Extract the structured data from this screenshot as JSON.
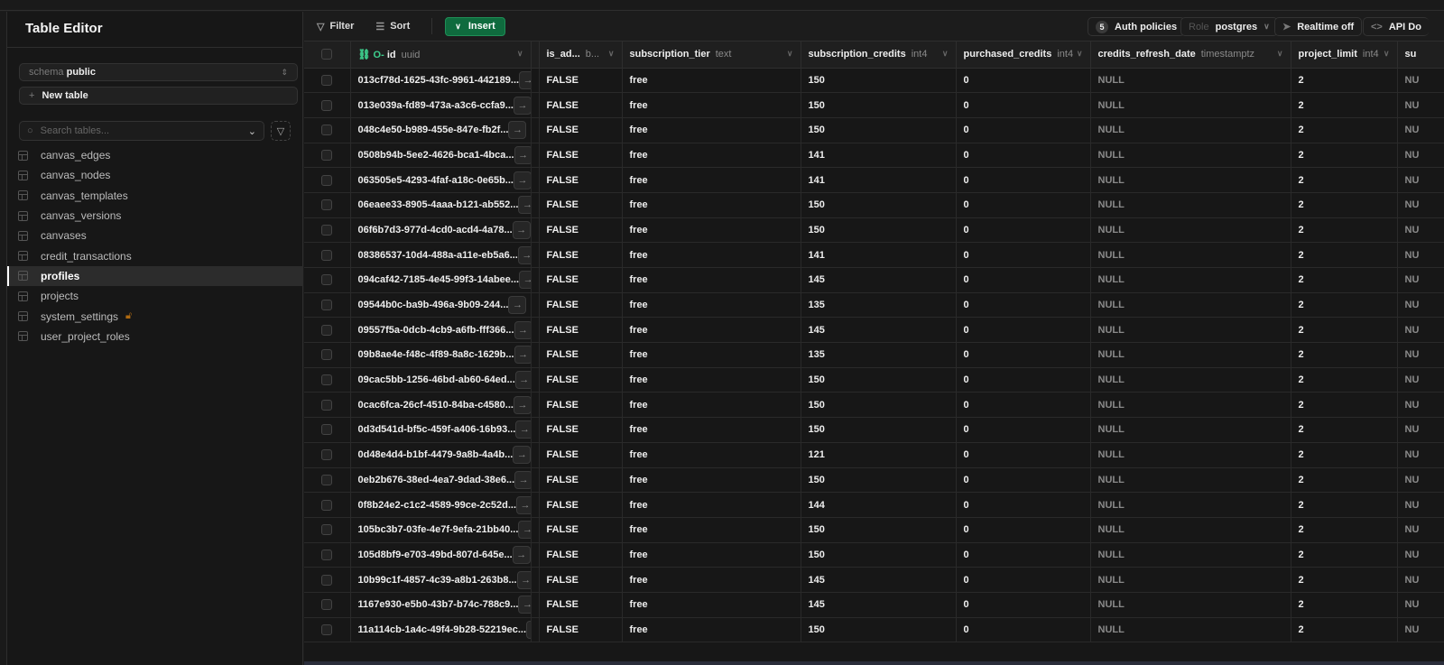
{
  "sidebar": {
    "title": "Table Editor",
    "schema_label": "schema",
    "schema_value": "public",
    "new_table": "New table",
    "search_placeholder": "Search tables...",
    "tables": [
      {
        "name": "canvas_edges"
      },
      {
        "name": "canvas_nodes"
      },
      {
        "name": "canvas_templates"
      },
      {
        "name": "canvas_versions"
      },
      {
        "name": "canvases"
      },
      {
        "name": "credit_transactions"
      },
      {
        "name": "profiles",
        "active": true
      },
      {
        "name": "projects"
      },
      {
        "name": "system_settings",
        "locked": true
      },
      {
        "name": "user_project_roles"
      }
    ]
  },
  "toolbar": {
    "filter": "Filter",
    "sort": "Sort",
    "insert": "Insert",
    "auth_count": "5",
    "auth_policies": "Auth policies",
    "role_label": "Role",
    "role_value": "postgres",
    "realtime": "Realtime off",
    "api_docs": "API Do"
  },
  "accent": "#0f6b3e",
  "columns": [
    {
      "name": "id",
      "type": "uuid"
    },
    {
      "name": "is_ad...",
      "type": "b..."
    },
    {
      "name": "subscription_tier",
      "type": "text"
    },
    {
      "name": "subscription_credits",
      "type": "int4"
    },
    {
      "name": "purchased_credits",
      "type": "int4"
    },
    {
      "name": "credits_refresh_date",
      "type": "timestamptz"
    },
    {
      "name": "project_limit",
      "type": "int4"
    },
    {
      "name": "su",
      "type": ""
    }
  ],
  "rows": [
    [
      "013cf78d-1625-43fc-9961-442189...",
      "FALSE",
      "free",
      "150",
      "0",
      "NULL",
      "2",
      "NU"
    ],
    [
      "013e039a-fd89-473a-a3c6-ccfa9...",
      "FALSE",
      "free",
      "150",
      "0",
      "NULL",
      "2",
      "NU"
    ],
    [
      "048c4e50-b989-455e-847e-fb2f...",
      "FALSE",
      "free",
      "150",
      "0",
      "NULL",
      "2",
      "NU"
    ],
    [
      "0508b94b-5ee2-4626-bca1-4bca...",
      "FALSE",
      "free",
      "141",
      "0",
      "NULL",
      "2",
      "NU"
    ],
    [
      "063505e5-4293-4faf-a18c-0e65b...",
      "FALSE",
      "free",
      "141",
      "0",
      "NULL",
      "2",
      "NU"
    ],
    [
      "06eaee33-8905-4aaa-b121-ab552...",
      "FALSE",
      "free",
      "150",
      "0",
      "NULL",
      "2",
      "NU"
    ],
    [
      "06f6b7d3-977d-4cd0-acd4-4a78...",
      "FALSE",
      "free",
      "150",
      "0",
      "NULL",
      "2",
      "NU"
    ],
    [
      "08386537-10d4-488a-a11e-eb5a6...",
      "FALSE",
      "free",
      "141",
      "0",
      "NULL",
      "2",
      "NU"
    ],
    [
      "094caf42-7185-4e45-99f3-14abee...",
      "FALSE",
      "free",
      "145",
      "0",
      "NULL",
      "2",
      "NU"
    ],
    [
      "09544b0c-ba9b-496a-9b09-244...",
      "FALSE",
      "free",
      "135",
      "0",
      "NULL",
      "2",
      "NU"
    ],
    [
      "09557f5a-0dcb-4cb9-a6fb-fff366...",
      "FALSE",
      "free",
      "145",
      "0",
      "NULL",
      "2",
      "NU"
    ],
    [
      "09b8ae4e-f48c-4f89-8a8c-1629b...",
      "FALSE",
      "free",
      "135",
      "0",
      "NULL",
      "2",
      "NU"
    ],
    [
      "09cac5bb-1256-46bd-ab60-64ed...",
      "FALSE",
      "free",
      "150",
      "0",
      "NULL",
      "2",
      "NU"
    ],
    [
      "0cac6fca-26cf-4510-84ba-c4580...",
      "FALSE",
      "free",
      "150",
      "0",
      "NULL",
      "2",
      "NU"
    ],
    [
      "0d3d541d-bf5c-459f-a406-16b93...",
      "FALSE",
      "free",
      "150",
      "0",
      "NULL",
      "2",
      "NU"
    ],
    [
      "0d48e4d4-b1bf-4479-9a8b-4a4b...",
      "FALSE",
      "free",
      "121",
      "0",
      "NULL",
      "2",
      "NU"
    ],
    [
      "0eb2b676-38ed-4ea7-9dad-38e6...",
      "FALSE",
      "free",
      "150",
      "0",
      "NULL",
      "2",
      "NU"
    ],
    [
      "0f8b24e2-c1c2-4589-99ce-2c52d...",
      "FALSE",
      "free",
      "144",
      "0",
      "NULL",
      "2",
      "NU"
    ],
    [
      "105bc3b7-03fe-4e7f-9efa-21bb40...",
      "FALSE",
      "free",
      "150",
      "0",
      "NULL",
      "2",
      "NU"
    ],
    [
      "105d8bf9-e703-49bd-807d-645e...",
      "FALSE",
      "free",
      "150",
      "0",
      "NULL",
      "2",
      "NU"
    ],
    [
      "10b99c1f-4857-4c39-a8b1-263b8...",
      "FALSE",
      "free",
      "145",
      "0",
      "NULL",
      "2",
      "NU"
    ],
    [
      "1167e930-e5b0-43b7-b74c-788c9...",
      "FALSE",
      "free",
      "145",
      "0",
      "NULL",
      "2",
      "NU"
    ],
    [
      "11a114cb-1a4c-49f4-9b28-52219ec...",
      "FALSE",
      "free",
      "150",
      "0",
      "NULL",
      "2",
      "NU"
    ]
  ]
}
